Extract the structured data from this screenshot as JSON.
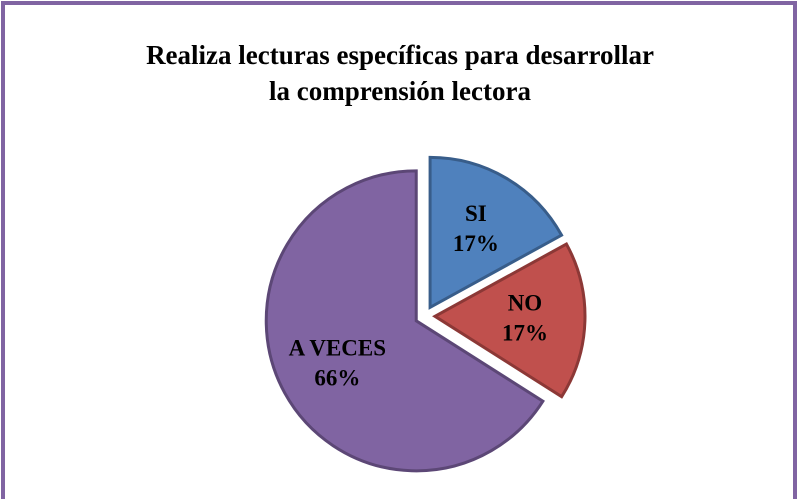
{
  "chart_data": {
    "type": "pie",
    "title": [
      "Realiza lecturas específicas para desarrollar",
      "la comprensión lectora"
    ],
    "categories": [
      "SI",
      "NO",
      "A VECES"
    ],
    "values": [
      17,
      17,
      66
    ],
    "value_labels": [
      "17%",
      "17%",
      "66%"
    ],
    "colors": [
      "#4f81bd",
      "#c0504d",
      "#8064a2"
    ],
    "edge_colors": [
      "#385d8a",
      "#8c3836",
      "#5c4776"
    ],
    "frame_color": "#8064a2"
  }
}
